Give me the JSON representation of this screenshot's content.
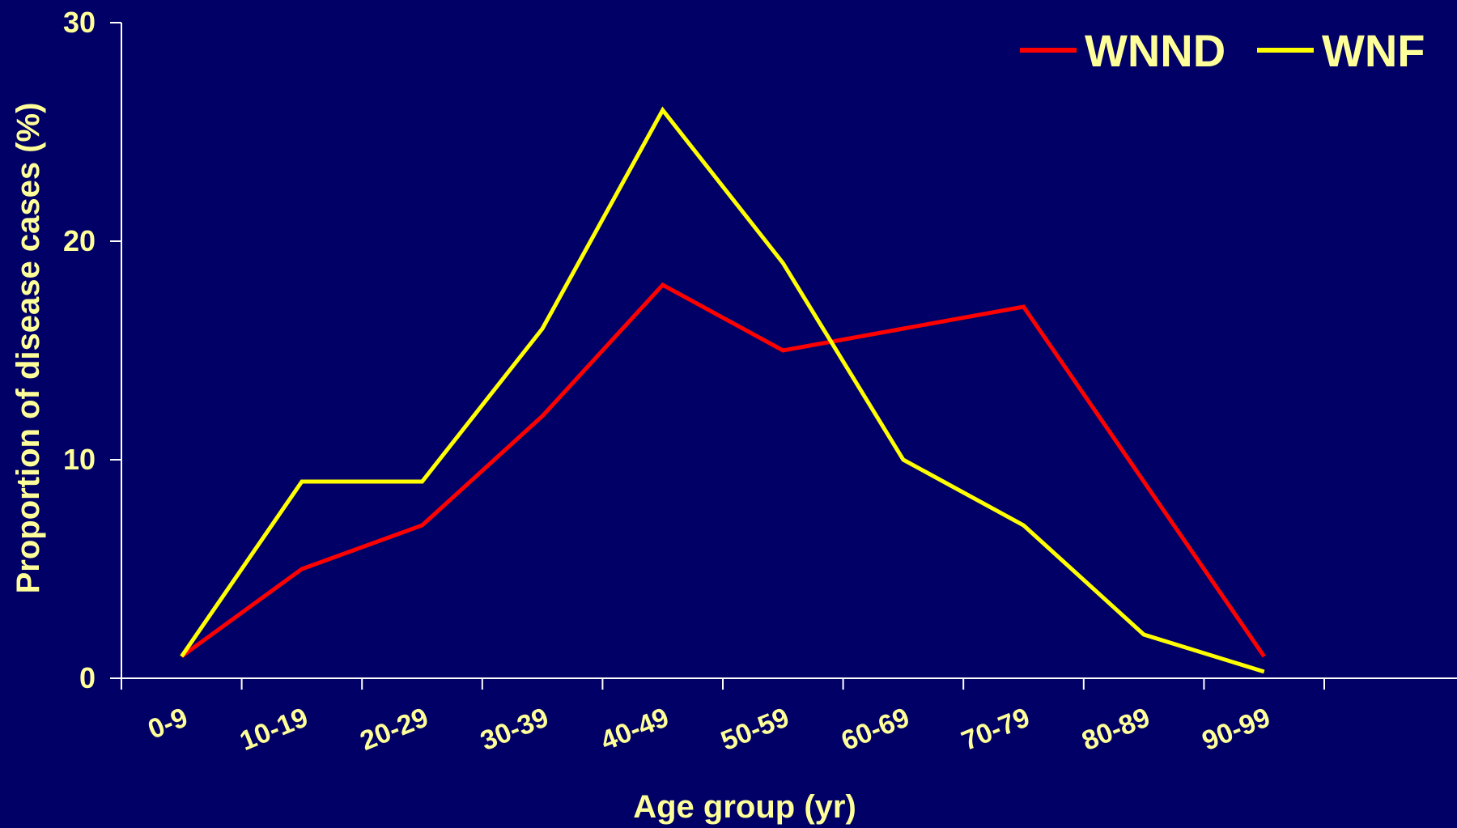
{
  "chart_data": {
    "type": "line",
    "title": "",
    "xlabel": "Age group (yr)",
    "ylabel": "Proportion of disease cases (%)",
    "categories": [
      "0-9",
      "10-19",
      "20-29",
      "30-39",
      "40-49",
      "50-59",
      "60-69",
      "70-79",
      "80-89",
      "90-99"
    ],
    "ylim": [
      0,
      30
    ],
    "yticks": [
      "0",
      "10",
      "20",
      "30"
    ],
    "grid": false,
    "legend_position": "top-right",
    "series": [
      {
        "name": "WNND",
        "color": "#ff0000",
        "values": [
          1,
          5,
          7,
          12,
          18,
          15,
          16,
          17,
          9,
          1
        ]
      },
      {
        "name": "WNF",
        "color": "#ffff00",
        "values": [
          1,
          9,
          9,
          16,
          26,
          19,
          10,
          7,
          2,
          0.3
        ]
      }
    ]
  }
}
